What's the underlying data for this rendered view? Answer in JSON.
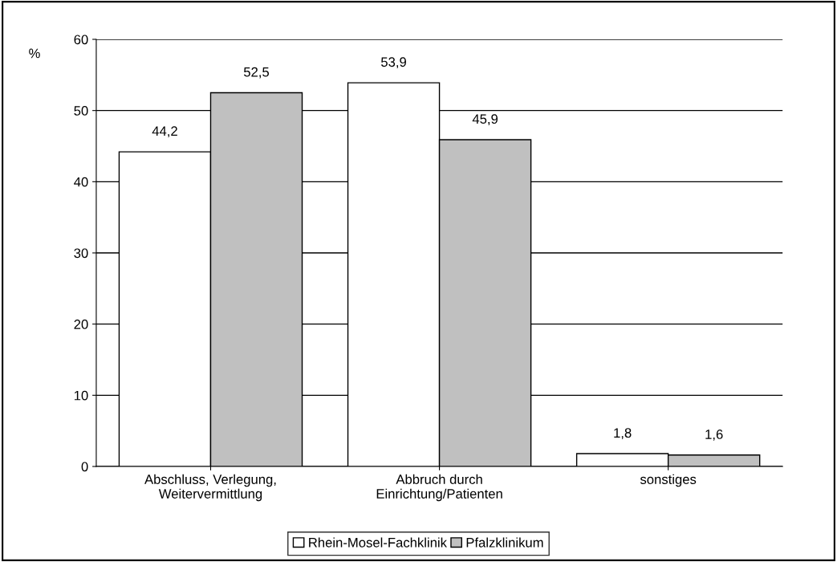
{
  "chart_data": {
    "type": "bar",
    "ylabel": "%",
    "categories": [
      "Abschluss, Verlegung,\nWeitervermittlung",
      "Abbruch durch\nEinrichtung/Patienten",
      "sonstiges"
    ],
    "series": [
      {
        "name": "Rhein-Mosel-Fachklinik",
        "color": "#ffffff",
        "values": [
          44.2,
          53.9,
          1.8
        ],
        "value_labels": [
          "44,2",
          "53,9",
          "1,8"
        ]
      },
      {
        "name": "Pfalzklinikum",
        "color": "#c0c0c0",
        "values": [
          52.5,
          45.9,
          1.6
        ],
        "value_labels": [
          "52,5",
          "45,9",
          "1,6"
        ]
      }
    ],
    "ylim": [
      0,
      60
    ],
    "yticks": [
      0,
      10,
      20,
      30,
      40,
      50,
      60
    ],
    "grid": "y",
    "legend": "bottom"
  }
}
